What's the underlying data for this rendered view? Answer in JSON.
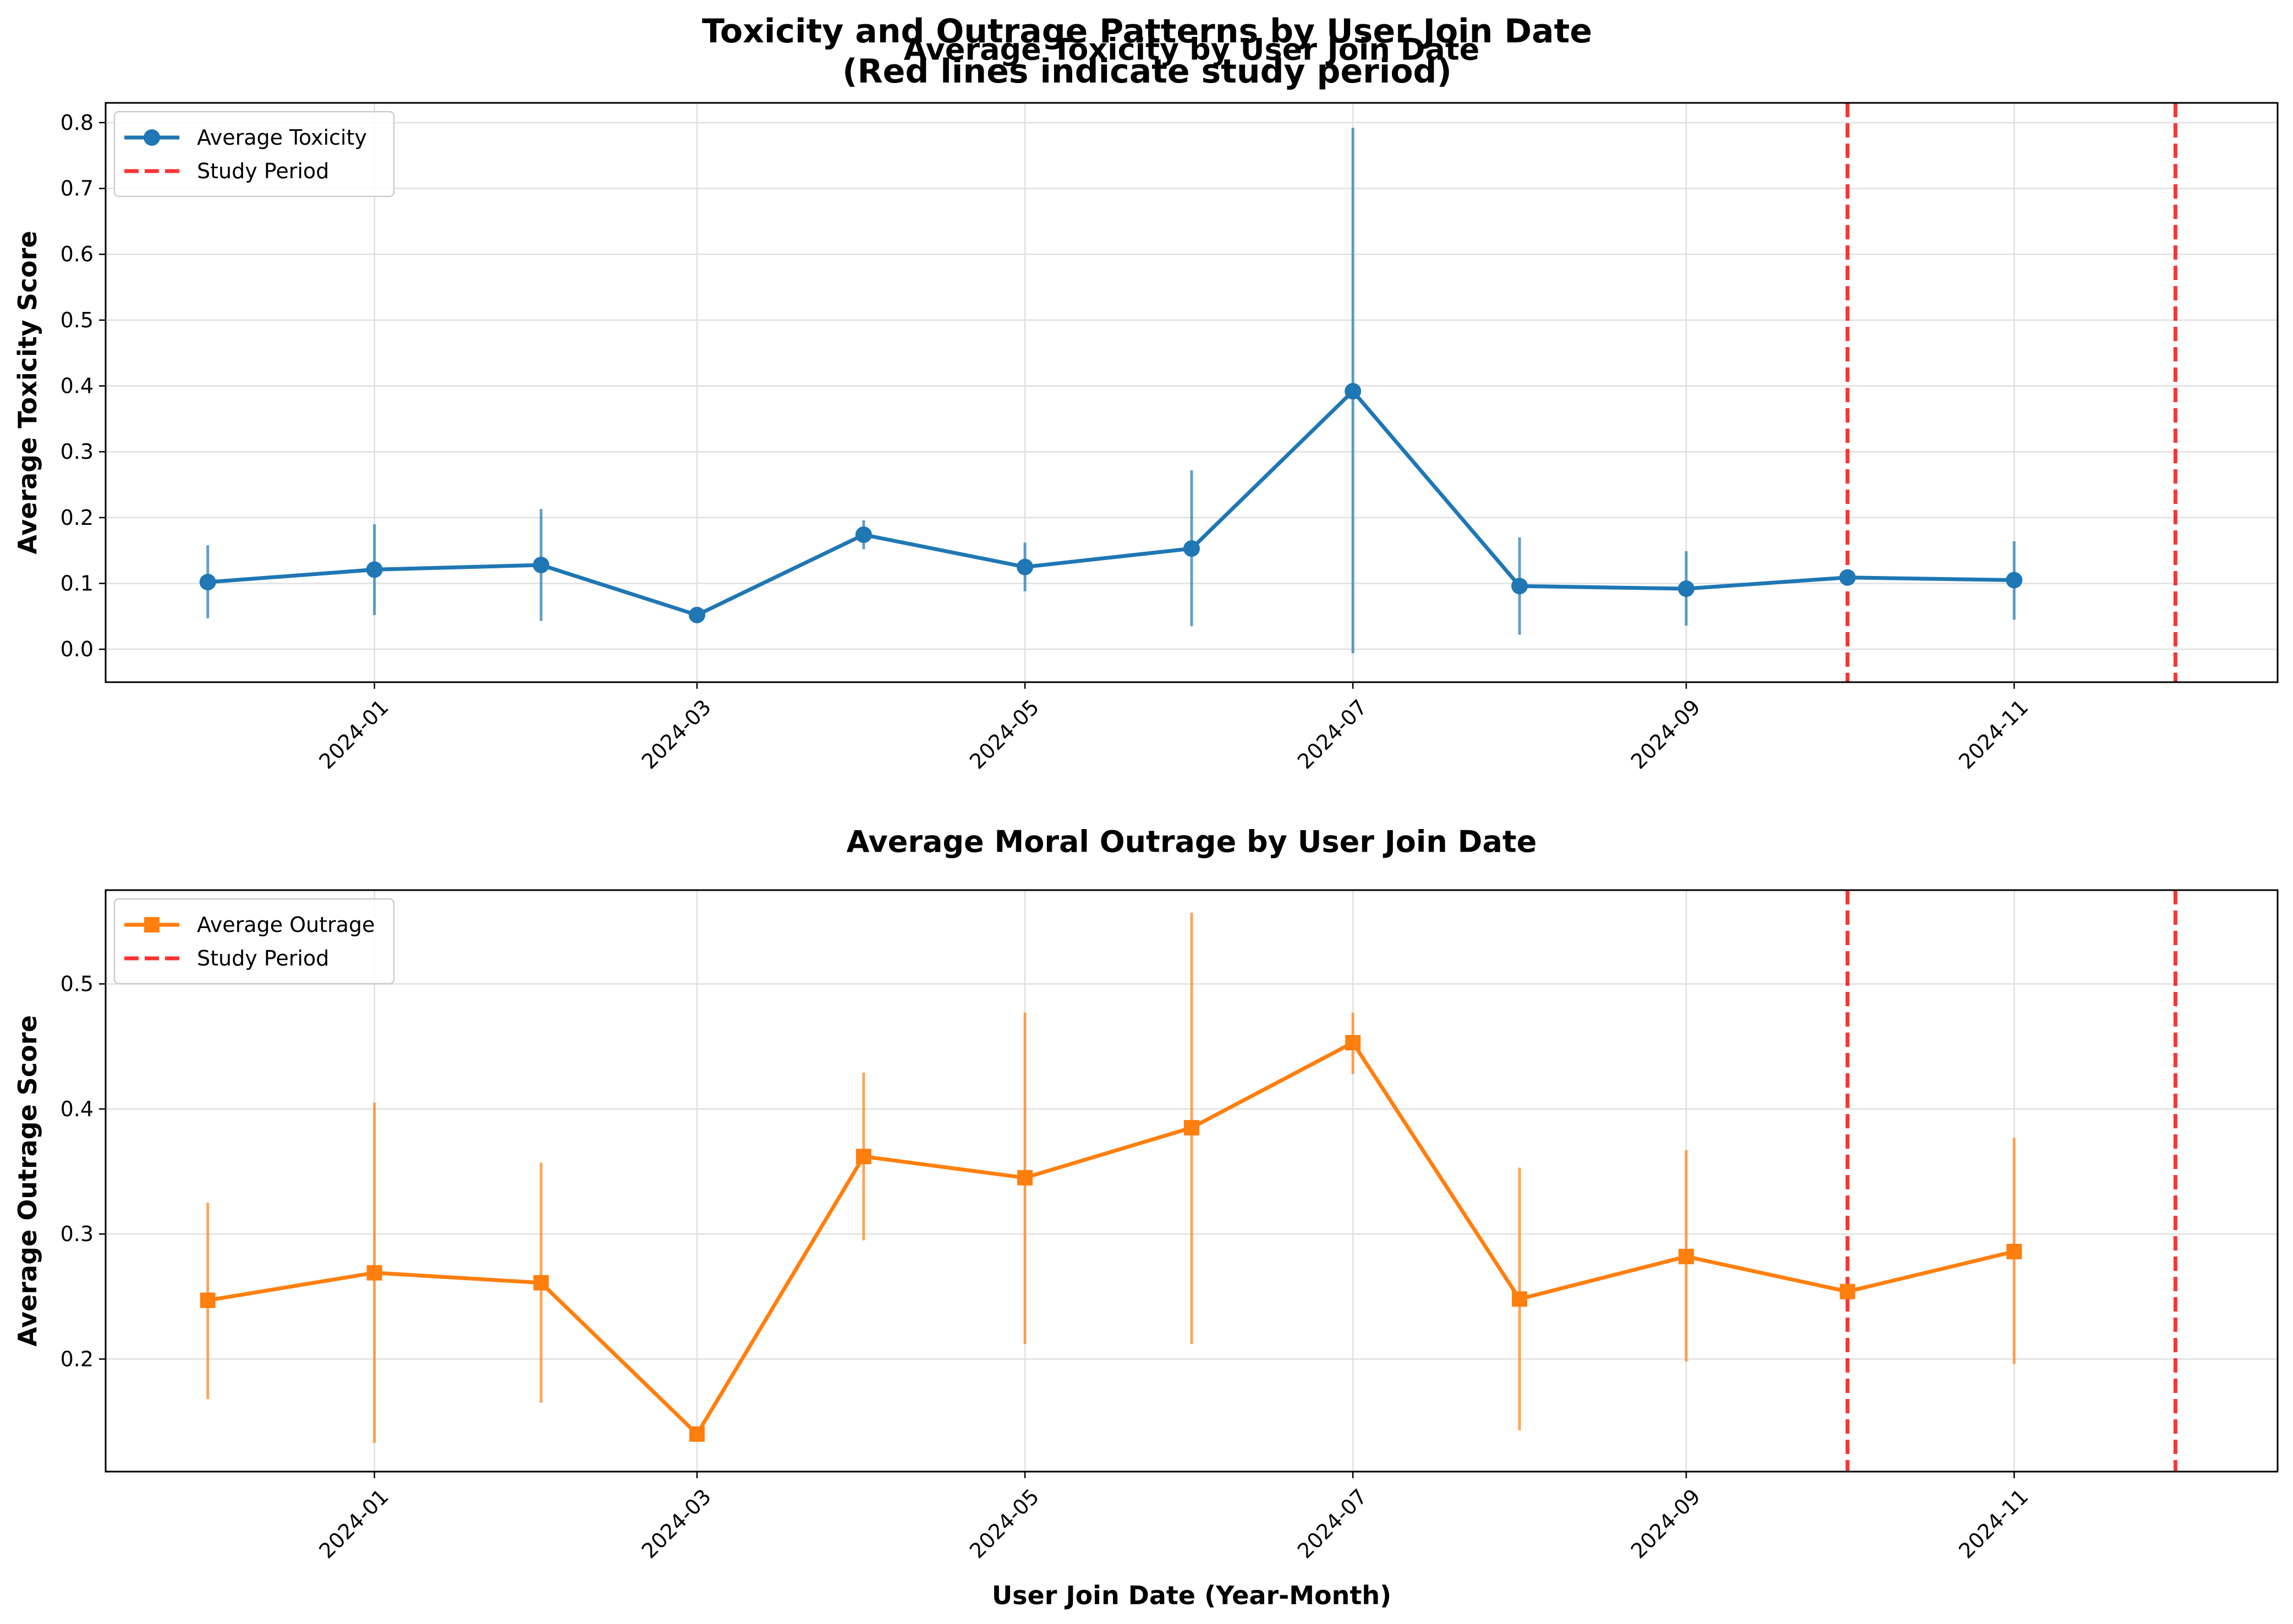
{
  "figure": {
    "suptitle_line1": "Toxicity and Outrage Patterns by User Join Date",
    "suptitle_line2": "(Red lines indicate study period)",
    "xlabel": "User Join Date (Year-Month)"
  },
  "colors": {
    "toxicity": "#1f77b4",
    "outrage": "#ff7f0e",
    "study_period": "#ff0000",
    "grid": "#e0e0e0"
  },
  "chart_data": [
    {
      "type": "line",
      "title": "Average Toxicity by User Join Date",
      "ylabel": "Average Toxicity Score",
      "xlabel": "",
      "ylim": [
        -0.05,
        0.83
      ],
      "yticks": [
        0.0,
        0.1,
        0.2,
        0.3,
        0.4,
        0.5,
        0.6,
        0.7,
        0.8
      ],
      "ytick_labels": [
        "0.0",
        "0.1",
        "0.2",
        "0.3",
        "0.4",
        "0.5",
        "0.6",
        "0.7",
        "0.8"
      ],
      "xlim": [
        "2023-11-12",
        "2024-12-20"
      ],
      "xticks": [
        "2024-01-01",
        "2024-03-01",
        "2024-05-01",
        "2024-07-01",
        "2024-09-01",
        "2024-11-01"
      ],
      "xtick_labels": [
        "2024-01",
        "2024-03",
        "2024-05",
        "2024-07",
        "2024-09",
        "2024-11"
      ],
      "marker": "circle",
      "grid": true,
      "legend_position": "top-left",
      "legend": [
        "Average Toxicity",
        "Study Period"
      ],
      "series": [
        {
          "name": "Average Toxicity",
          "x": [
            "2023-12-01",
            "2024-01-01",
            "2024-02-01",
            "2024-03-01",
            "2024-04-01",
            "2024-05-01",
            "2024-06-01",
            "2024-07-01",
            "2024-08-01",
            "2024-09-01",
            "2024-10-01",
            "2024-11-01"
          ],
          "y": [
            0.102,
            0.121,
            0.128,
            0.052,
            0.174,
            0.125,
            0.153,
            0.392,
            0.096,
            0.092,
            0.109,
            0.105
          ],
          "err_low": [
            0.047,
            0.052,
            0.043,
            0.052,
            0.152,
            0.088,
            0.035,
            -0.006,
            0.022,
            0.036,
            0.109,
            0.045
          ],
          "err_high": [
            0.158,
            0.19,
            0.213,
            0.052,
            0.196,
            0.162,
            0.272,
            0.792,
            0.17,
            0.149,
            0.109,
            0.164
          ]
        }
      ],
      "study_period": [
        "2024-10-01",
        "2024-12-01"
      ]
    },
    {
      "type": "line",
      "title": "Average Moral Outrage by User Join Date",
      "ylabel": "Average Outrage Score",
      "xlabel": "User Join Date (Year-Month)",
      "ylim": [
        0.11,
        0.575
      ],
      "yticks": [
        0.2,
        0.3,
        0.4,
        0.5
      ],
      "ytick_labels": [
        "0.2",
        "0.3",
        "0.4",
        "0.5"
      ],
      "xlim": [
        "2023-11-12",
        "2024-12-20"
      ],
      "xticks": [
        "2024-01-01",
        "2024-03-01",
        "2024-05-01",
        "2024-07-01",
        "2024-09-01",
        "2024-11-01"
      ],
      "xtick_labels": [
        "2024-01",
        "2024-03",
        "2024-05",
        "2024-07",
        "2024-09",
        "2024-11"
      ],
      "marker": "square",
      "grid": true,
      "legend_position": "top-left",
      "legend": [
        "Average Outrage",
        "Study Period"
      ],
      "series": [
        {
          "name": "Average Outrage",
          "x": [
            "2023-12-01",
            "2024-01-01",
            "2024-02-01",
            "2024-03-01",
            "2024-04-01",
            "2024-05-01",
            "2024-06-01",
            "2024-07-01",
            "2024-08-01",
            "2024-09-01",
            "2024-10-01",
            "2024-11-01"
          ],
          "y": [
            0.247,
            0.269,
            0.261,
            0.14,
            0.362,
            0.345,
            0.385,
            0.453,
            0.248,
            0.282,
            0.254,
            0.286
          ],
          "err_low": [
            0.168,
            0.133,
            0.165,
            0.14,
            0.295,
            0.212,
            0.212,
            0.428,
            0.143,
            0.198,
            0.254,
            0.196
          ],
          "err_high": [
            0.325,
            0.405,
            0.357,
            0.14,
            0.429,
            0.477,
            0.557,
            0.477,
            0.353,
            0.367,
            0.254,
            0.377
          ]
        }
      ],
      "study_period": [
        "2024-10-01",
        "2024-12-01"
      ]
    }
  ]
}
